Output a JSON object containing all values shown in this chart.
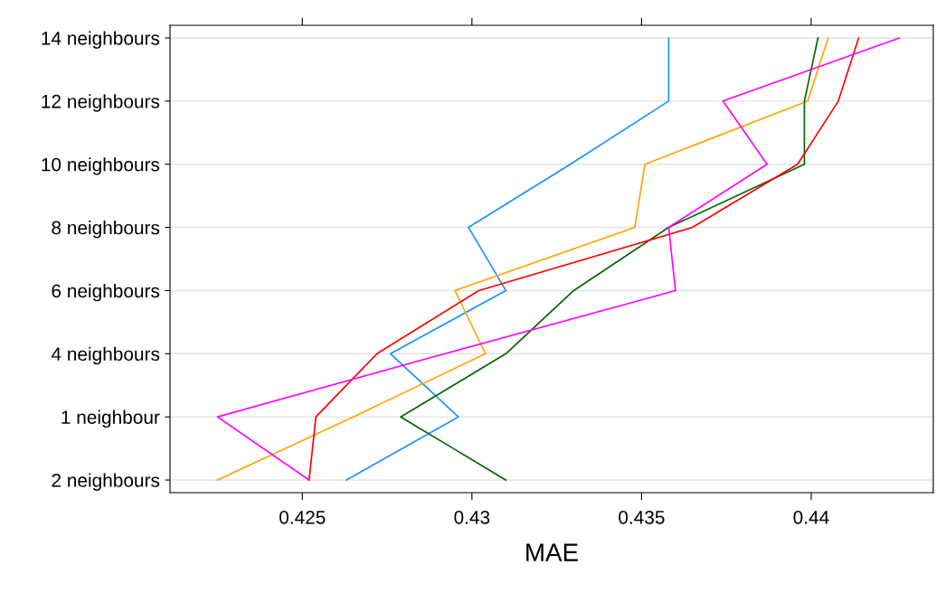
{
  "chart_data": {
    "type": "line",
    "orientation": "horizontal",
    "xlabel": "MAE",
    "categories": [
      "14 neighbours",
      "12 neighbours",
      "10 neighbours",
      "8 neighbours",
      "6 neighbours",
      "4 neighbours",
      "1 neighbour",
      "2 neighbours"
    ],
    "series": [
      {
        "color": "#1e90ff",
        "values": [
          0.4358,
          0.4358,
          0.4329,
          0.4299,
          0.431,
          0.4276,
          0.4296,
          0.4263
        ]
      },
      {
        "color": "#ffa500",
        "values": [
          0.4405,
          0.4399,
          0.4351,
          0.4348,
          0.4295,
          0.4304,
          0.4265,
          0.4225
        ]
      },
      {
        "color": "#006400",
        "values": [
          0.4402,
          0.4398,
          0.4398,
          0.4358,
          0.433,
          0.431,
          0.4279,
          0.431
        ]
      },
      {
        "color": "#ff0000",
        "values": [
          0.4414,
          0.4408,
          0.4396,
          0.4365,
          0.4302,
          0.4272,
          0.4254,
          0.4252
        ]
      },
      {
        "color": "#ff00ff",
        "values": [
          0.4426,
          0.4374,
          0.4387,
          0.4358,
          0.436,
          0.4292,
          0.4225,
          0.4252
        ]
      }
    ],
    "xlim": [
      0.4211,
      0.4436
    ],
    "xticks": [
      0.425,
      0.43,
      0.435,
      0.44
    ],
    "grid": "y",
    "line_style": "solid",
    "marker": "none"
  }
}
